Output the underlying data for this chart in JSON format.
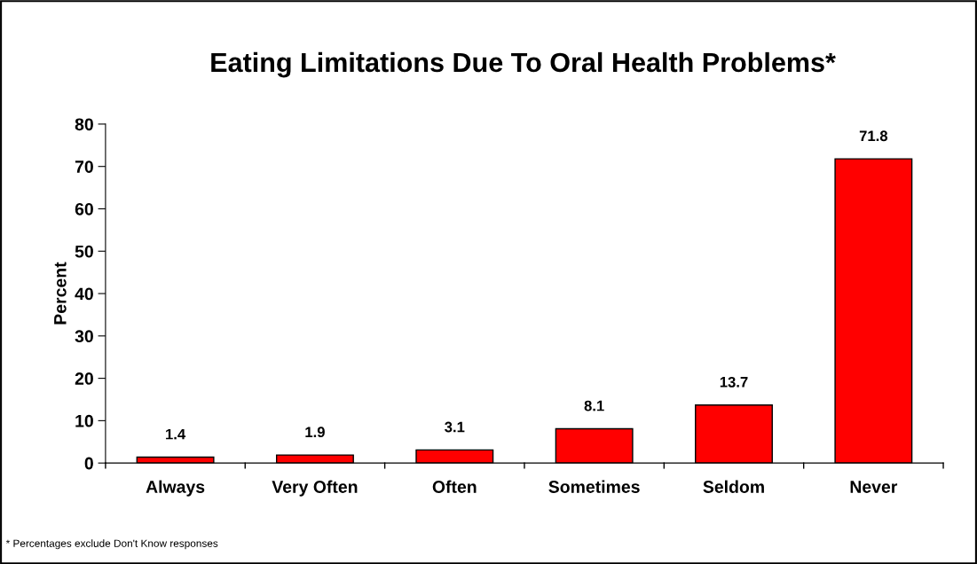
{
  "chart_data": {
    "type": "bar",
    "title": "Eating Limitations Due To Oral Health Problems*",
    "ylabel": "Percent",
    "categories": [
      "Always",
      "Very Often",
      "Often",
      "Sometimes",
      "Seldom",
      "Never"
    ],
    "values": [
      1.4,
      1.9,
      3.1,
      8.1,
      13.7,
      71.8
    ],
    "color": "#ff0000",
    "ylim": [
      0,
      80
    ],
    "yticks": [
      0,
      10,
      20,
      30,
      40,
      50,
      60,
      70,
      80
    ],
    "grid": false,
    "data_labels": true,
    "annotations": [
      "* Percentages exclude Don't Know responses"
    ]
  }
}
